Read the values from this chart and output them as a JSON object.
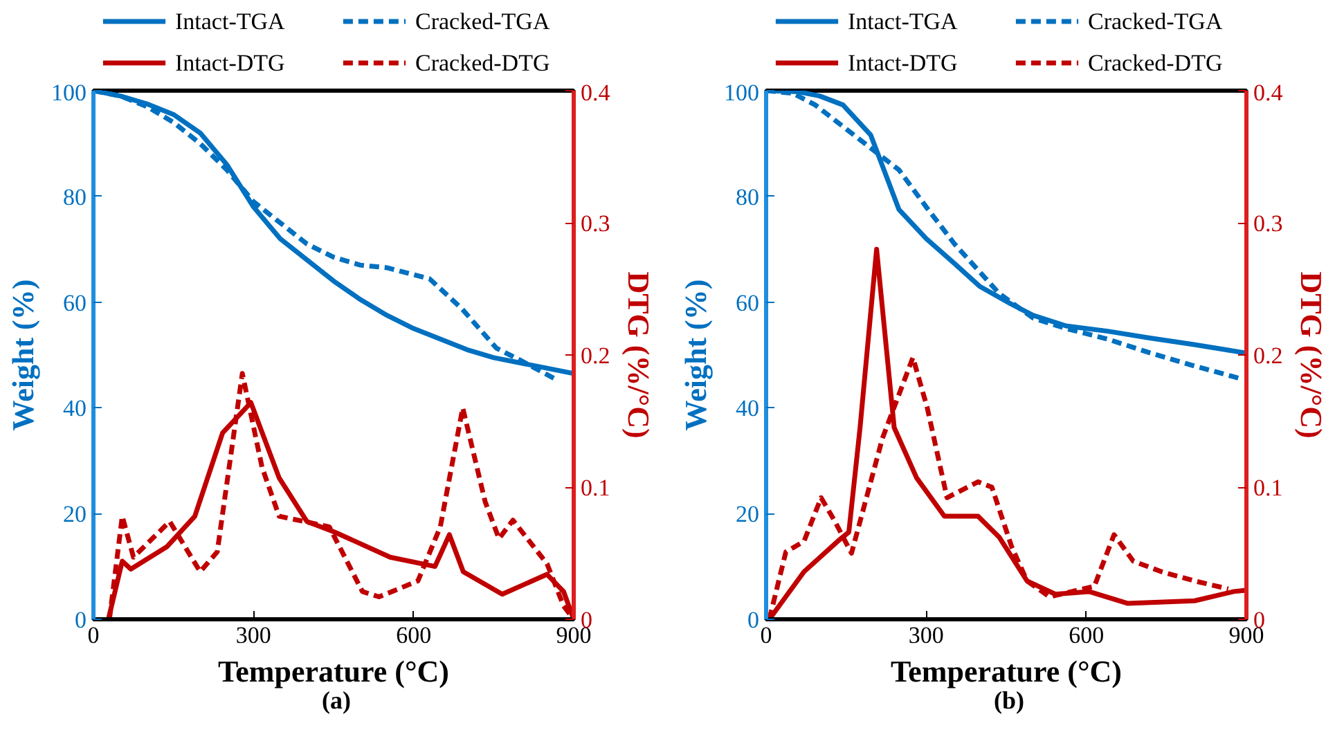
{
  "chart_data": [
    {
      "type": "line",
      "xlabel": "Temperature (°C)",
      "ylabel": "Weight (%)",
      "y2label": "DTG (%/°C)",
      "annotations": [
        "(a)"
      ],
      "legend": "top",
      "grid": false,
      "xlim": [
        0,
        900
      ],
      "xticks": [
        0,
        300,
        600,
        900
      ],
      "ylim": [
        0,
        100
      ],
      "yticks": [
        0,
        20,
        40,
        60,
        80,
        100
      ],
      "y2lim": [
        0,
        0.4
      ],
      "y2ticks": [
        0,
        0.1,
        0.2,
        0.3,
        0.4
      ],
      "series": [
        {
          "name": "Intact-TGA",
          "color": "#0070c0",
          "line_style": "solid",
          "axis": "y",
          "x": [
            0,
            50,
            100,
            150,
            200,
            250,
            300,
            350,
            400,
            450,
            500,
            550,
            600,
            650,
            700,
            750,
            800,
            850,
            900
          ],
          "values": [
            100,
            99,
            97.5,
            95.5,
            92,
            86,
            78,
            72,
            68,
            64,
            60.5,
            57.5,
            55,
            53,
            51,
            49.5,
            48.5,
            47.5,
            46.5
          ]
        },
        {
          "name": "Cracked-TGA",
          "color": "#0070c0",
          "line_style": "dashed",
          "axis": "y",
          "x": [
            0,
            50,
            100,
            150,
            200,
            250,
            300,
            350,
            400,
            450,
            500,
            550,
            630,
            690,
            755,
            800,
            870
          ],
          "values": [
            100,
            99,
            97,
            94,
            90,
            85,
            79,
            75,
            71,
            68.5,
            67,
            66.5,
            64.4,
            58.8,
            51.3,
            49,
            45.2
          ]
        },
        {
          "name": "Intact-DTG",
          "color": "#c00000",
          "line_style": "solid",
          "axis": "y2",
          "x": [
            28,
            54,
            70,
            138,
            190,
            242,
            295,
            348,
            400,
            452,
            556,
            640,
            667,
            693,
            766,
            850,
            881,
            900
          ],
          "values": [
            0,
            0.044,
            0.038,
            0.055,
            0.078,
            0.141,
            0.164,
            0.107,
            0.074,
            0.066,
            0.047,
            0.04,
            0.064,
            0.036,
            0.019,
            0.034,
            0.021,
            0
          ]
        },
        {
          "name": "Cracked-DTG",
          "color": "#c00000",
          "line_style": "dashed",
          "axis": "y2",
          "x": [
            30,
            54,
            75,
            143,
            200,
            232,
            279,
            316,
            348,
            442,
            504,
            535,
            608,
            650,
            692,
            734,
            760,
            786,
            850,
            881,
            900
          ],
          "values": [
            0,
            0.078,
            0.047,
            0.074,
            0.036,
            0.051,
            0.186,
            0.115,
            0.078,
            0.07,
            0.021,
            0.017,
            0.029,
            0.07,
            0.16,
            0.089,
            0.061,
            0.075,
            0.042,
            0.01,
            0
          ]
        }
      ]
    },
    {
      "type": "line",
      "xlabel": "Temperature (°C)",
      "ylabel": "Weight (%)",
      "y2label": "DTG (%/°C)",
      "annotations": [
        "(b)"
      ],
      "legend": "top",
      "grid": false,
      "xlim": [
        0,
        900
      ],
      "xticks": [
        0,
        300,
        600,
        900
      ],
      "ylim": [
        0,
        100
      ],
      "yticks": [
        0,
        20,
        40,
        60,
        80,
        100
      ],
      "y2lim": [
        0,
        0.4
      ],
      "y2ticks": [
        0,
        0.1,
        0.2,
        0.3,
        0.4
      ],
      "series": [
        {
          "name": "Intact-TGA",
          "color": "#0070c0",
          "line_style": "solid",
          "axis": "y",
          "x": [
            0,
            60,
            100,
            144,
            196,
            249,
            300,
            353,
            400,
            458,
            500,
            562,
            640,
            719,
            800,
            897
          ],
          "values": [
            100,
            99.8,
            99,
            97.3,
            91.6,
            77.5,
            72,
            67.3,
            63,
            59.7,
            57.5,
            55.5,
            54.5,
            53.2,
            52,
            50.4
          ]
        },
        {
          "name": "Cracked-TGA",
          "color": "#0070c0",
          "line_style": "dashed",
          "axis": "y",
          "x": [
            0,
            50,
            92,
            176,
            249,
            300,
            353,
            437,
            500,
            562,
            640,
            719,
            800,
            886
          ],
          "values": [
            100,
            99.5,
            97.3,
            90.7,
            85,
            78,
            71,
            61.6,
            57,
            55,
            53,
            50.4,
            48,
            45.6
          ]
        },
        {
          "name": "Intact-DTG",
          "color": "#c00000",
          "line_style": "solid",
          "axis": "y2",
          "x": [
            6,
            71,
            134,
            155,
            176,
            207,
            240,
            282,
            334,
            397,
            437,
            489,
            542,
            605,
            678,
            803,
            876,
            900
          ],
          "values": [
            0,
            0.036,
            0.059,
            0.066,
            0.145,
            0.28,
            0.145,
            0.107,
            0.078,
            0.078,
            0.062,
            0.029,
            0.019,
            0.021,
            0.012,
            0.014,
            0.021,
            0.022
          ]
        },
        {
          "name": "Cracked-DTG",
          "color": "#c00000",
          "line_style": "dashed",
          "axis": "y2",
          "x": [
            6,
            37,
            71,
            103,
            129,
            160,
            218,
            275,
            302,
            339,
            397,
            423,
            460,
            489,
            531,
            615,
            652,
            688,
            741,
            803,
            866
          ],
          "values": [
            0,
            0.051,
            0.059,
            0.092,
            0.074,
            0.05,
            0.137,
            0.198,
            0.16,
            0.092,
            0.104,
            0.1,
            0.055,
            0.029,
            0.017,
            0.025,
            0.064,
            0.044,
            0.036,
            0.029,
            0.023
          ]
        }
      ]
    }
  ]
}
